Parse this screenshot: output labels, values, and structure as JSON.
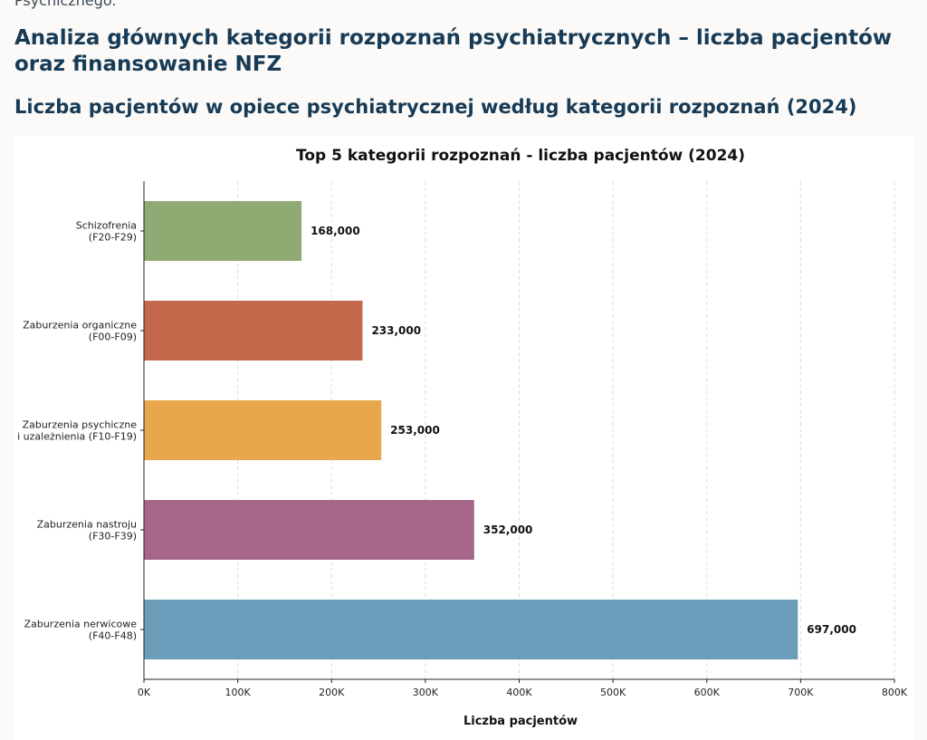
{
  "page": {
    "cut_text": "Psychicznego.",
    "heading": "Analiza głównych kategorii rozpoznań psychiatrycznych – liczba pacjentów oraz finansowanie NFZ",
    "subheading": "Liczba pacjentów w opiece psychiatrycznej według kategorii rozpoznań (2024)"
  },
  "chart_data": {
    "type": "bar",
    "orientation": "horizontal",
    "title": "Top 5 kategorii rozpoznań - liczba pacjentów (2024)",
    "xlabel": "Liczba pacjentów",
    "ylabel": "",
    "xlim": [
      0,
      800000
    ],
    "xticks": [
      0,
      100000,
      200000,
      300000,
      400000,
      500000,
      600000,
      700000,
      800000
    ],
    "xtick_labels": [
      "0K",
      "100K",
      "200K",
      "300K",
      "400K",
      "500K",
      "600K",
      "700K",
      "800K"
    ],
    "grid": "x-dashed",
    "categories": [
      [
        "Schizofrenia",
        "(F20-F29)"
      ],
      [
        "Zaburzenia organiczne",
        "(F00-F09)"
      ],
      [
        "Zaburzenia psychiczne",
        "i uzależnienia (F10-F19)"
      ],
      [
        "Zaburzenia nastroju",
        "(F30-F39)"
      ],
      [
        "Zaburzenia nerwicowe",
        "(F40-F48)"
      ]
    ],
    "values": [
      168000,
      233000,
      253000,
      352000,
      697000
    ],
    "value_labels": [
      "168,000",
      "233,000",
      "253,000",
      "352,000",
      "697,000"
    ],
    "colors": [
      "#8faa72",
      "#c4694b",
      "#e9a74d",
      "#a5668a",
      "#6a9dba"
    ]
  }
}
